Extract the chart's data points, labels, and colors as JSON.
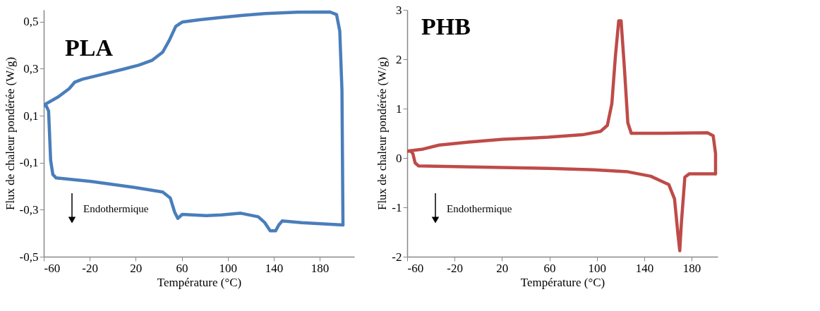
{
  "chart_data": [
    {
      "type": "line",
      "title": "PLA",
      "xlabel": "Température (°C)",
      "ylabel": "Flux de chaleur pondérée (W/g)",
      "annotations": [
        "Endothermique"
      ],
      "xlim": [
        -60,
        210
      ],
      "xticks": [
        -60,
        -20,
        20,
        60,
        100,
        140,
        180
      ],
      "ylim": [
        -0.5,
        0.55
      ],
      "yticks": [
        {
          "value": -0.5,
          "label": "-0,5"
        },
        {
          "value": -0.3,
          "label": "-0,3"
        },
        {
          "value": -0.1,
          "label": "-0,1"
        },
        {
          "value": 0.1,
          "label": "0,1"
        },
        {
          "value": 0.3,
          "label": "0,3"
        },
        {
          "value": 0.5,
          "label": "0,5"
        }
      ],
      "grid": false,
      "series": [
        {
          "color": "#4a7ebb",
          "x": [
            -60,
            -47.3,
            -37.9,
            -33.2,
            -26.5,
            -9.5,
            9.4,
            22.6,
            34,
            43.4,
            49.1,
            54.8,
            60.4,
            75.5,
            94.4,
            113.3,
            132.2,
            160.6,
            188.9,
            194.6,
            197.4,
            199.3,
            200.2
          ],
          "values": [
            0.145,
            0.18,
            0.215,
            0.242,
            0.255,
            0.275,
            0.298,
            0.315,
            0.335,
            0.37,
            0.42,
            0.48,
            0.498,
            0.508,
            0.518,
            0.527,
            0.534,
            0.54,
            0.541,
            0.53,
            0.46,
            0.21,
            -0.365
          ]
        },
        {
          "color": "#4a7ebb",
          "x": [
            -60,
            -57.7,
            -55.8,
            -54,
            -52.1,
            -49.2,
            -19,
            18.8,
            43.4,
            50,
            53.8,
            56.6,
            60.4,
            81.2,
            94.4,
            111.4,
            126.5,
            132.2,
            136.9,
            141.6,
            144.4,
            147.3,
            164.3,
            188.9,
            200.2
          ],
          "values": [
            0.145,
            0.14,
            0.12,
            -0.09,
            -0.15,
            -0.165,
            -0.18,
            -0.205,
            -0.225,
            -0.25,
            -0.31,
            -0.337,
            -0.32,
            -0.325,
            -0.322,
            -0.315,
            -0.33,
            -0.355,
            -0.39,
            -0.39,
            -0.365,
            -0.348,
            -0.355,
            -0.362,
            -0.365
          ]
        }
      ]
    },
    {
      "type": "line",
      "title": "PHB",
      "xlabel": "Température (°C)",
      "ylabel": "Flux de chaleur pondérée (W/g)",
      "annotations": [
        "Endothermique"
      ],
      "xlim": [
        -60,
        202
      ],
      "xticks": [
        -60,
        -20,
        20,
        60,
        100,
        140,
        180
      ],
      "ylim": [
        -2,
        3
      ],
      "yticks": [
        -2,
        -1,
        0,
        1,
        2,
        3
      ],
      "grid": false,
      "series": [
        {
          "color": "#be4b48",
          "x": [
            -60,
            -46.6,
            -33.1,
            -8.2,
            20.6,
            59,
            87.8,
            103.2,
            108.9,
            112.7,
            115.7,
            118.5,
            120.5,
            123.3,
            126.2,
            129.1,
            155,
            193.4,
            198.2,
            200.2,
            200.2
          ],
          "values": [
            0.14,
            0.18,
            0.26,
            0.32,
            0.38,
            0.42,
            0.47,
            0.54,
            0.66,
            1.1,
            2.06,
            2.78,
            2.78,
            1.82,
            0.71,
            0.5,
            0.5,
            0.51,
            0.45,
            0.09,
            -0.32
          ]
        },
        {
          "color": "#be4b48",
          "x": [
            -60,
            -57.1,
            -55.2,
            -53.3,
            -50.4,
            -27.4,
            11,
            59,
            97.4,
            126.2,
            145.5,
            160.8,
            165.6,
            168.5,
            170,
            171.4,
            174.3,
            178.1,
            200.2
          ],
          "values": [
            0.14,
            0.14,
            0.09,
            -0.1,
            -0.16,
            -0.17,
            -0.19,
            -0.21,
            -0.24,
            -0.28,
            -0.37,
            -0.54,
            -0.83,
            -1.55,
            -1.88,
            -1.31,
            -0.39,
            -0.32,
            -0.32
          ]
        }
      ]
    }
  ]
}
